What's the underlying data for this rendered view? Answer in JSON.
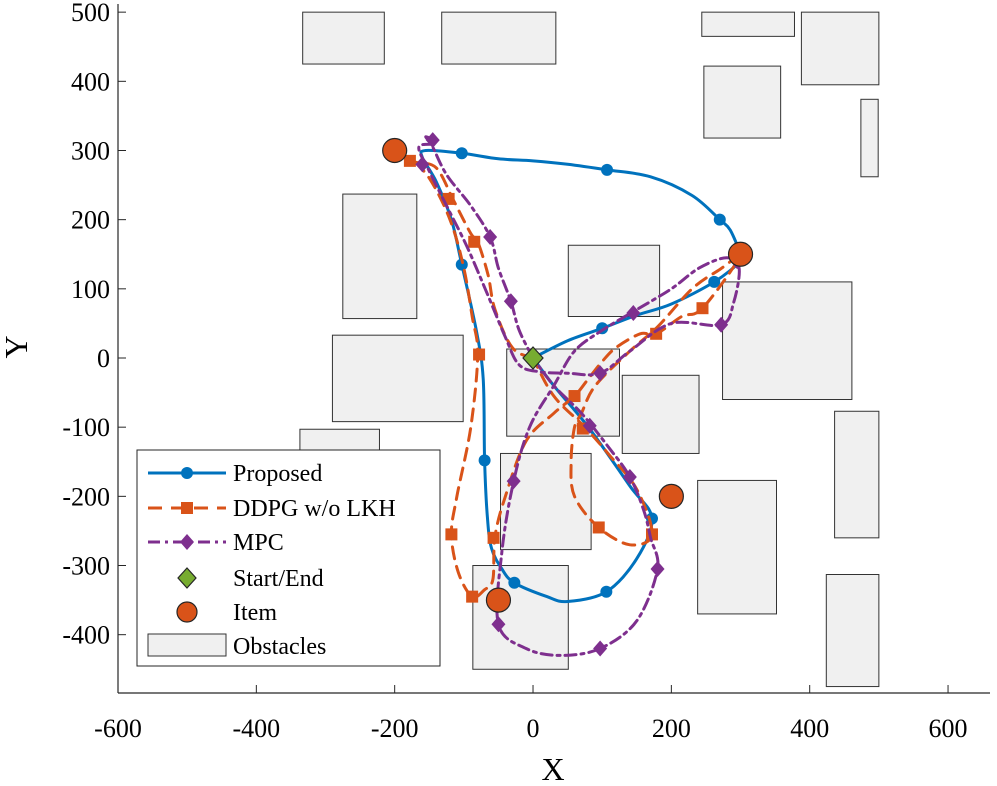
{
  "chart_data": {
    "type": "line",
    "title": "",
    "xlabel": "X",
    "ylabel": "Y",
    "xlim": [
      -600,
      600
    ],
    "ylim": [
      -480,
      510
    ],
    "xticks": [
      -600,
      -400,
      -200,
      0,
      200,
      400,
      600
    ],
    "yticks": [
      -400,
      -300,
      -200,
      -100,
      0,
      100,
      200,
      300,
      400,
      500
    ],
    "legend_location": "bottom-left",
    "colors": {
      "proposed": "#0072BD",
      "ddpg": "#D95319",
      "mpc": "#7E2F8E",
      "start": "#77AC30",
      "item": "#D95319",
      "obstacle_fill": "#f0f0f0",
      "obstacle_edge": "#333333"
    },
    "obstacles": [
      {
        "x": [
          -333,
          -215
        ],
        "y": [
          425,
          500
        ]
      },
      {
        "x": [
          -132,
          33
        ],
        "y": [
          425,
          500
        ]
      },
      {
        "x": [
          244,
          378
        ],
        "y": [
          465,
          500
        ]
      },
      {
        "x": [
          388,
          500
        ],
        "y": [
          395,
          500
        ]
      },
      {
        "x": [
          247,
          358
        ],
        "y": [
          318,
          422
        ]
      },
      {
        "x": [
          474,
          499
        ],
        "y": [
          262,
          374
        ]
      },
      {
        "x": [
          -275,
          -168
        ],
        "y": [
          57,
          237
        ]
      },
      {
        "x": [
          51,
          183
        ],
        "y": [
          60,
          163
        ]
      },
      {
        "x": [
          274,
          461
        ],
        "y": [
          -60,
          110
        ]
      },
      {
        "x": [
          -290,
          -101
        ],
        "y": [
          -92,
          33
        ]
      },
      {
        "x": [
          -38,
          125
        ],
        "y": [
          -113,
          13
        ]
      },
      {
        "x": [
          129,
          240
        ],
        "y": [
          -138,
          -25
        ]
      },
      {
        "x": [
          -337,
          -222
        ],
        "y": [
          -192,
          -103
        ]
      },
      {
        "x": [
          -47,
          84
        ],
        "y": [
          -277,
          -138
        ]
      },
      {
        "x": [
          238,
          352
        ],
        "y": [
          -370,
          -177
        ]
      },
      {
        "x": [
          436,
          500
        ],
        "y": [
          -260,
          -77
        ]
      },
      {
        "x": [
          -87,
          51
        ],
        "y": [
          -450,
          -300
        ]
      },
      {
        "x": [
          424,
          500
        ],
        "y": [
          -475,
          -313
        ]
      }
    ],
    "series": [
      {
        "name": "Proposed",
        "style": "solid",
        "marker": "circle",
        "path": [
          [
            0,
            0
          ],
          [
            50,
            25
          ],
          [
            100,
            43
          ],
          [
            150,
            62
          ],
          [
            200,
            78
          ],
          [
            262,
            110
          ],
          [
            300,
            140
          ],
          [
            300,
            150
          ],
          [
            285,
            185
          ],
          [
            270,
            200
          ],
          [
            230,
            235
          ],
          [
            170,
            262
          ],
          [
            107,
            272
          ],
          [
            50,
            280
          ],
          [
            0,
            285
          ],
          [
            -50,
            288
          ],
          [
            -103,
            296
          ],
          [
            -155,
            300
          ],
          [
            -160,
            290
          ],
          [
            -140,
            255
          ],
          [
            -118,
            200
          ],
          [
            -103,
            135
          ],
          [
            -82,
            40
          ],
          [
            -72,
            -30
          ],
          [
            -70,
            -148
          ],
          [
            -66,
            -230
          ],
          [
            -60,
            -275
          ],
          [
            -45,
            -305
          ],
          [
            -27,
            -325
          ],
          [
            20,
            -345
          ],
          [
            50,
            -352
          ],
          [
            106,
            -338
          ],
          [
            150,
            -290
          ],
          [
            172,
            -232
          ],
          [
            140,
            -185
          ],
          [
            80,
            -100
          ],
          [
            30,
            -40
          ],
          [
            0,
            0
          ]
        ],
        "markers": [
          [
            100,
            43
          ],
          [
            262,
            110
          ],
          [
            270,
            200
          ],
          [
            107,
            272
          ],
          [
            -103,
            296
          ],
          [
            -103,
            135
          ],
          [
            -70,
            -148
          ],
          [
            -27,
            -325
          ],
          [
            106,
            -338
          ],
          [
            172,
            -232
          ],
          [
            0,
            0
          ]
        ]
      },
      {
        "name": "DDPG w/o LKH",
        "style": "dashed",
        "marker": "square",
        "path": [
          [
            0,
            0
          ],
          [
            -30,
            15
          ],
          [
            -55,
            70
          ],
          [
            -65,
            120
          ],
          [
            -80,
            168
          ],
          [
            -90,
            180
          ],
          [
            -115,
            228
          ],
          [
            -140,
            275
          ],
          [
            -170,
            283
          ],
          [
            -178,
            290
          ],
          [
            -150,
            260
          ],
          [
            -120,
            200
          ],
          [
            -100,
            130
          ],
          [
            -88,
            60
          ],
          [
            -80,
            5
          ],
          [
            -90,
            -100
          ],
          [
            -110,
            -200
          ],
          [
            -118,
            -255
          ],
          [
            -108,
            -310
          ],
          [
            -88,
            -345
          ],
          [
            -70,
            -335
          ],
          [
            -58,
            -320
          ],
          [
            -55,
            -258
          ],
          [
            -40,
            -200
          ],
          [
            -10,
            -120
          ],
          [
            30,
            -80
          ],
          [
            60,
            -55
          ],
          [
            80,
            -30
          ],
          [
            100,
            -5
          ],
          [
            120,
            15
          ],
          [
            155,
            35
          ],
          [
            178,
            35
          ],
          [
            215,
            60
          ],
          [
            245,
            72
          ],
          [
            298,
            145
          ],
          [
            270,
            128
          ],
          [
            230,
            100
          ],
          [
            180,
            45
          ],
          [
            140,
            10
          ],
          [
            90,
            -40
          ],
          [
            70,
            -80
          ],
          [
            60,
            -100
          ],
          [
            55,
            -150
          ],
          [
            60,
            -200
          ],
          [
            95,
            -245
          ],
          [
            140,
            -270
          ],
          [
            172,
            -255
          ],
          [
            150,
            -190
          ],
          [
            110,
            -140
          ],
          [
            75,
            -100
          ],
          [
            30,
            -55
          ],
          [
            0,
            0
          ]
        ],
        "markers": [
          [
            -178,
            285
          ],
          [
            -122,
            230
          ],
          [
            -85,
            168
          ],
          [
            -78,
            5
          ],
          [
            -118,
            -255
          ],
          [
            -88,
            -345
          ],
          [
            -57,
            -260
          ],
          [
            60,
            -55
          ],
          [
            72,
            -102
          ],
          [
            95,
            -245
          ],
          [
            172,
            -255
          ],
          [
            178,
            35
          ],
          [
            245,
            72
          ]
        ]
      },
      {
        "name": "MPC",
        "style": "dashdot",
        "marker": "diamond",
        "path": [
          [
            0,
            0
          ],
          [
            -20,
            40
          ],
          [
            -32,
            82
          ],
          [
            -50,
            130
          ],
          [
            -62,
            175
          ],
          [
            -90,
            220
          ],
          [
            -125,
            265
          ],
          [
            -145,
            305
          ],
          [
            -155,
            320
          ],
          [
            -140,
            310
          ],
          [
            -165,
            305
          ],
          [
            -150,
            270
          ],
          [
            -125,
            220
          ],
          [
            -95,
            160
          ],
          [
            -65,
            90
          ],
          [
            -40,
            30
          ],
          [
            -20,
            -10
          ],
          [
            10,
            -20
          ],
          [
            50,
            -22
          ],
          [
            97,
            -22
          ],
          [
            140,
            10
          ],
          [
            200,
            50
          ],
          [
            272,
            48
          ],
          [
            290,
            80
          ],
          [
            298,
            130
          ],
          [
            280,
            145
          ],
          [
            240,
            130
          ],
          [
            200,
            100
          ],
          [
            150,
            70
          ],
          [
            100,
            40
          ],
          [
            60,
            10
          ],
          [
            30,
            -40
          ],
          [
            -5,
            -100
          ],
          [
            -28,
            -178
          ],
          [
            -45,
            -280
          ],
          [
            -50,
            -385
          ],
          [
            -10,
            -420
          ],
          [
            40,
            -430
          ],
          [
            97,
            -420
          ],
          [
            150,
            -380
          ],
          [
            180,
            -305
          ],
          [
            170,
            -260
          ],
          [
            160,
            -220
          ],
          [
            140,
            -172
          ],
          [
            110,
            -130
          ],
          [
            70,
            -80
          ],
          [
            30,
            -40
          ],
          [
            0,
            0
          ]
        ],
        "markers": [
          [
            -160,
            280
          ],
          [
            -145,
            315
          ],
          [
            -62,
            175
          ],
          [
            -32,
            82
          ],
          [
            97,
            -22
          ],
          [
            272,
            48
          ],
          [
            295,
            140
          ],
          [
            145,
            65
          ],
          [
            -28,
            -178
          ],
          [
            -50,
            -385
          ],
          [
            97,
            -420
          ],
          [
            180,
            -305
          ],
          [
            140,
            -172
          ],
          [
            82,
            -98
          ]
        ]
      }
    ],
    "start_end": {
      "name": "Start/End",
      "point": [
        0,
        0
      ]
    },
    "items": {
      "name": "Item",
      "points": [
        [
          -200,
          300
        ],
        [
          300,
          150
        ],
        [
          200,
          -200
        ],
        [
          -50,
          -350
        ]
      ]
    },
    "legend": {
      "proposed": "Proposed",
      "ddpg": "DDPG w/o LKH",
      "mpc": "MPC",
      "start": "Start/End",
      "item": "Item",
      "obstacles": "Obstacles"
    }
  }
}
